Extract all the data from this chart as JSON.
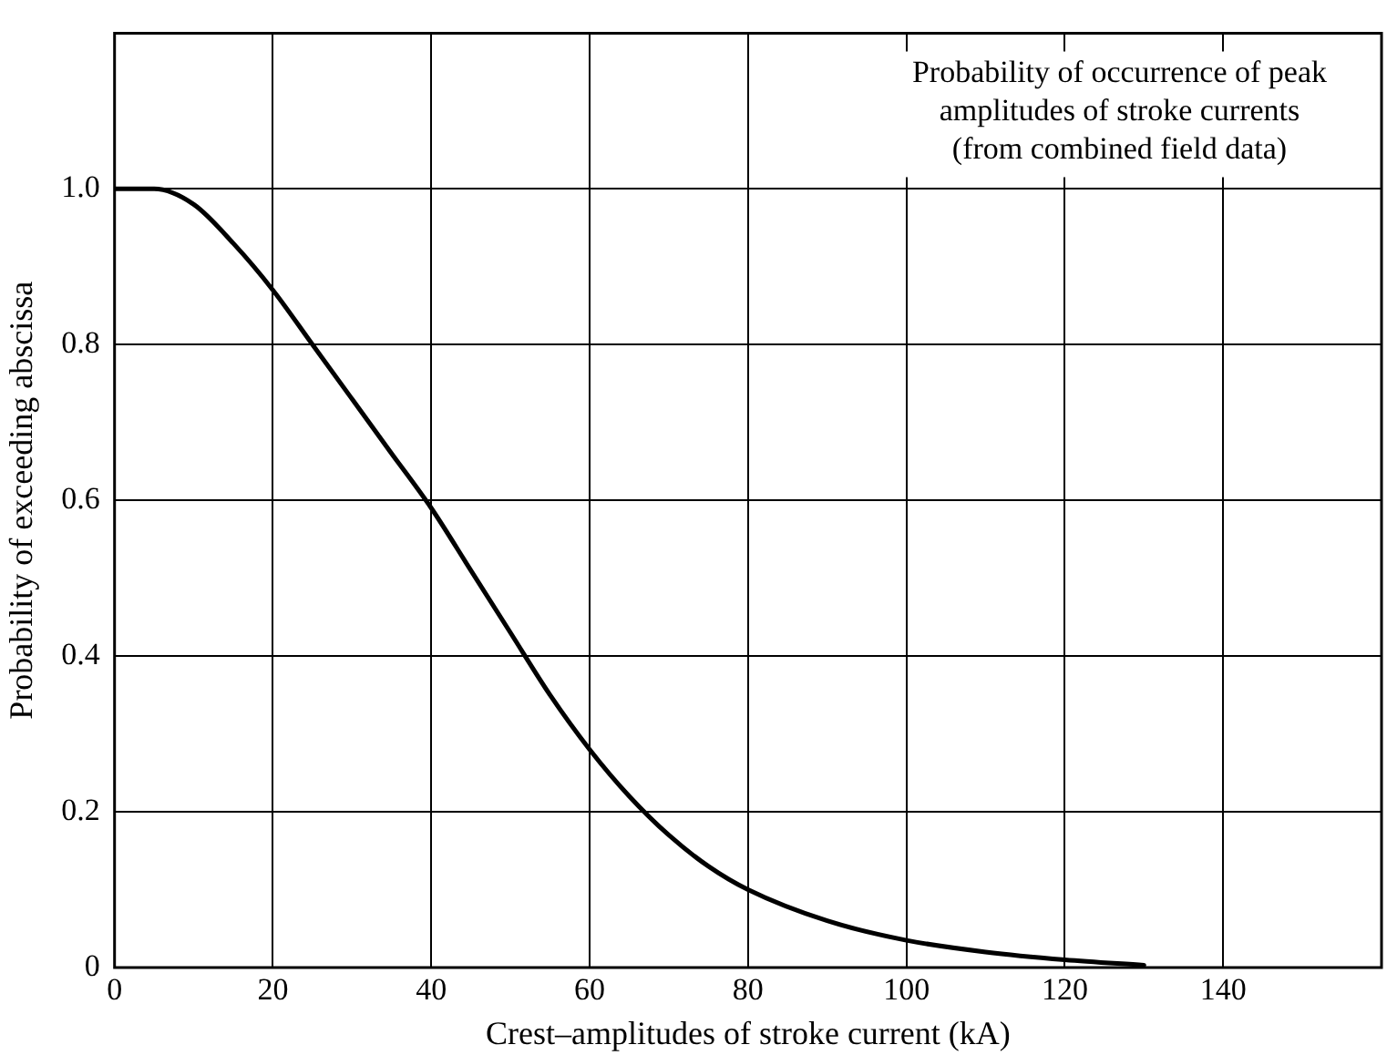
{
  "chart_data": {
    "type": "line",
    "xlabel": "Crest–amplitudes of stroke current (kA)",
    "ylabel": "Probability of exceeding abscissa",
    "annotations": [
      "Probability of occurrence of peak\namplitudes of stroke currents\n(from combined field data)"
    ],
    "x": [
      0,
      5,
      10,
      15,
      20,
      25,
      30,
      35,
      40,
      45,
      50,
      55,
      60,
      65,
      70,
      75,
      80,
      90,
      100,
      110,
      120,
      130
    ],
    "series": [
      {
        "color": "#000000",
        "values": [
          1.0,
          1.0,
          0.98,
          0.93,
          0.87,
          0.8,
          0.73,
          0.66,
          0.59,
          0.51,
          0.43,
          0.35,
          0.28,
          0.22,
          0.17,
          0.13,
          0.1,
          0.06,
          0.035,
          0.02,
          0.01,
          0.003
        ]
      }
    ],
    "xlim": [
      0,
      160
    ],
    "xticks": [
      0,
      20,
      40,
      60,
      80,
      100,
      120,
      140
    ],
    "ylim": [
      0,
      1.2
    ],
    "yticks": [
      0,
      {
        "value": 0.2,
        "label": "0.2"
      },
      {
        "value": 0.4,
        "label": "0.4"
      },
      {
        "value": 0.6,
        "label": "0.6"
      },
      {
        "value": 0.8,
        "label": "0.8"
      },
      {
        "value": 1,
        "label": "1.0"
      }
    ],
    "grid": true,
    "legend": false,
    "marker": "none",
    "line_style": "solid"
  }
}
